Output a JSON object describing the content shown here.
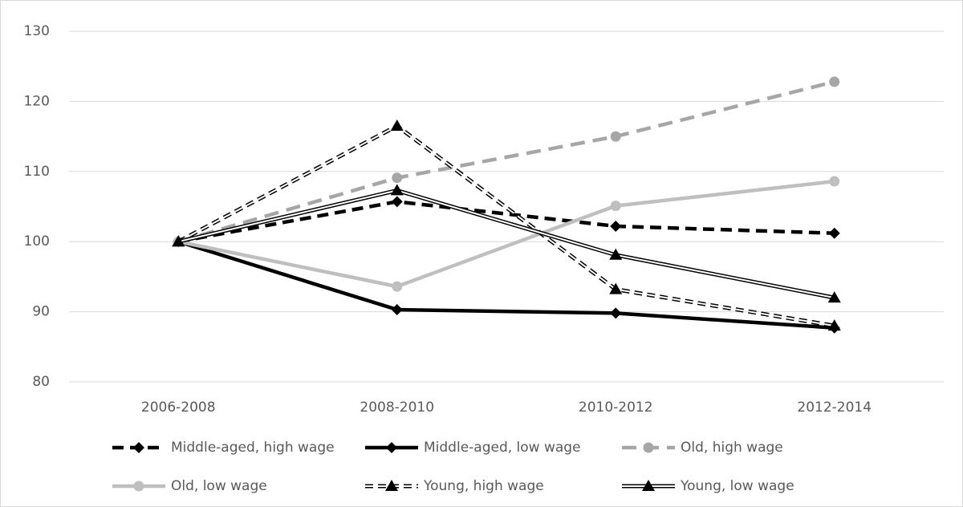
{
  "chart_data": {
    "type": "line",
    "categories": [
      "2006-2008",
      "2008-2010",
      "2010-2012",
      "2012-2014"
    ],
    "series": [
      {
        "name": "Middle-aged, high wage",
        "color": "#000000",
        "line_style": "dashed",
        "marker": "diamond",
        "double": false,
        "values": [
          100,
          105.7,
          102.2,
          101.2
        ]
      },
      {
        "name": "Middle-aged, low wage",
        "color": "#000000",
        "line_style": "solid",
        "marker": "diamond",
        "double": false,
        "values": [
          100,
          90.3,
          89.8,
          87.7
        ]
      },
      {
        "name": "Old, high wage",
        "color": "#a6a6a6",
        "line_style": "dashed",
        "marker": "circle",
        "double": false,
        "values": [
          100,
          109.1,
          115.0,
          122.8
        ]
      },
      {
        "name": "Old, low wage",
        "color": "#bfbfbf",
        "line_style": "solid",
        "marker": "circle",
        "double": false,
        "values": [
          100,
          93.6,
          105.1,
          108.6
        ]
      },
      {
        "name": "Young, high wage",
        "color": "#000000",
        "line_style": "dashed",
        "marker": "triangle",
        "double": true,
        "values": [
          100,
          116.5,
          93.2,
          88.0
        ]
      },
      {
        "name": "Young, low wage",
        "color": "#000000",
        "line_style": "solid",
        "marker": "triangle",
        "double": true,
        "values": [
          100,
          107.3,
          98.1,
          92.0
        ]
      }
    ],
    "ylim": [
      80,
      130
    ],
    "yticks": [
      80,
      90,
      100,
      110,
      120,
      130
    ],
    "grid": true,
    "legend": "bottom"
  }
}
